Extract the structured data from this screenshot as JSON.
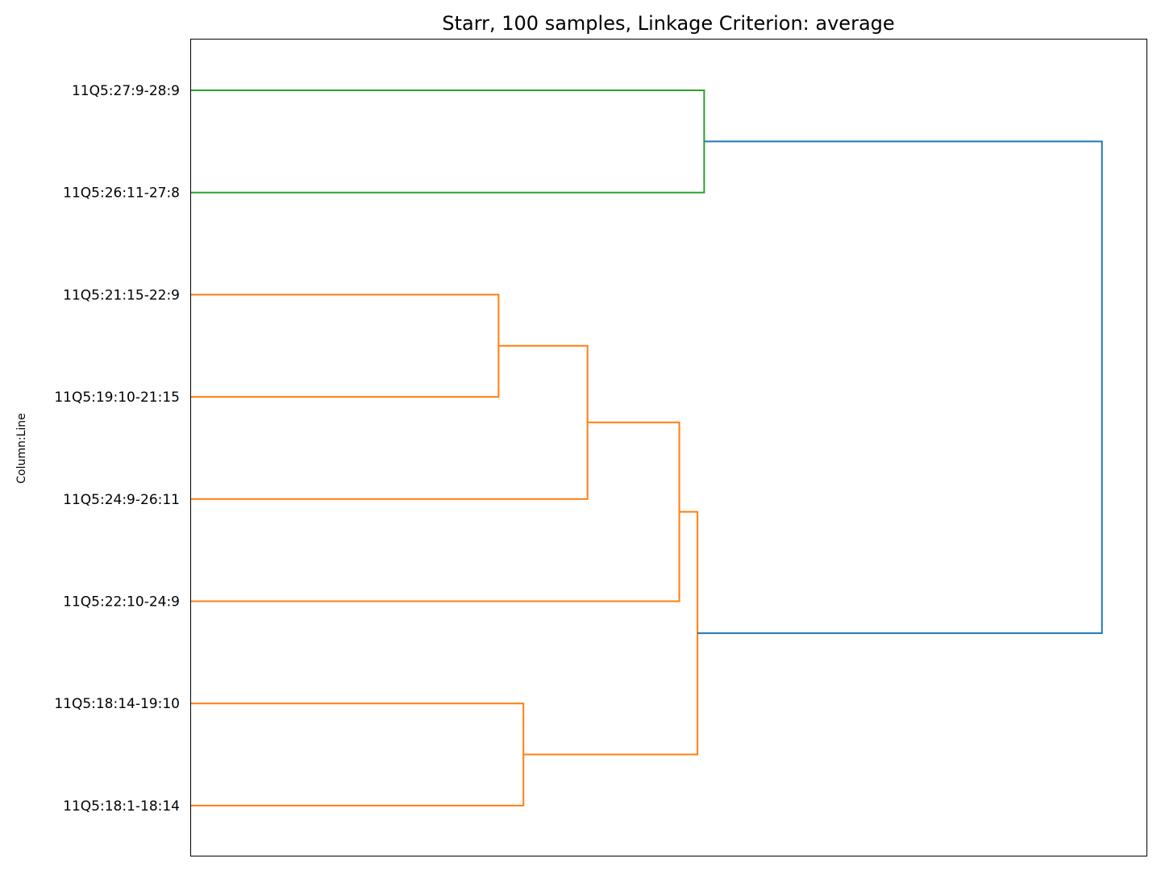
{
  "chart_data": {
    "type": "dendrogram",
    "title": "Starr, 100 samples, Linkage Criterion: average",
    "ylabel": "Column:Line",
    "xlabel": "",
    "orientation": "left",
    "grid": false,
    "x_ticks_shown": false,
    "xlim": [
      0,
      1
    ],
    "leaves": [
      "11Q5:27:9-28:9",
      "11Q5:26:11-27:8",
      "11Q5:21:15-22:9",
      "11Q5:19:10-21:15",
      "11Q5:24:9-26:11",
      "11Q5:22:10-24:9",
      "11Q5:18:14-19:10",
      "11Q5:18:1-18:14"
    ],
    "merges": [
      {
        "id": "m1",
        "children": [
          "L0",
          "L1"
        ],
        "height": 0.537,
        "color": "#2ca02c"
      },
      {
        "id": "m2",
        "children": [
          "L2",
          "L3"
        ],
        "height": 0.322,
        "color": "#ff7f0e"
      },
      {
        "id": "m3",
        "children": [
          "m2",
          "L4"
        ],
        "height": 0.415,
        "color": "#ff7f0e"
      },
      {
        "id": "m4",
        "children": [
          "m3",
          "L5"
        ],
        "height": 0.511,
        "color": "#ff7f0e"
      },
      {
        "id": "m5",
        "children": [
          "L6",
          "L7"
        ],
        "height": 0.348,
        "color": "#ff7f0e"
      },
      {
        "id": "m6",
        "children": [
          "m4",
          "m5"
        ],
        "height": 0.53,
        "color": "#ff7f0e"
      },
      {
        "id": "m7",
        "children": [
          "m1",
          "m6"
        ],
        "height": 0.953,
        "color": "#1f77b4"
      }
    ],
    "colors": {
      "cluster_green": "#2ca02c",
      "cluster_orange": "#ff7f0e",
      "above_threshold": "#1f77b4",
      "frame": "#000000"
    }
  }
}
